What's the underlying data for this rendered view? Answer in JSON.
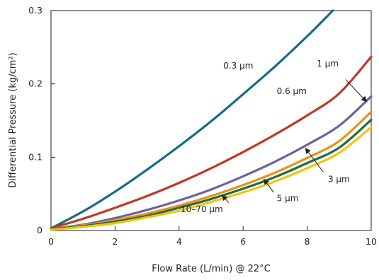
{
  "chart_data": {
    "type": "line",
    "title": "",
    "xlabel": "Flow Rate (L/min) @ 22°C",
    "ylabel": "Differential Pressure (kg/cm²)",
    "xlim": [
      0,
      10
    ],
    "ylim": [
      0,
      0.3
    ],
    "x_ticks": [
      0,
      2,
      4,
      6,
      8,
      10
    ],
    "y_ticks": [
      {
        "value": 0,
        "label": "0"
      },
      {
        "value": 0.1,
        "label": "0.1"
      },
      {
        "value": 0.2,
        "label": "0.2"
      },
      {
        "value": 0.3,
        "label": "0.3"
      }
    ],
    "grid": false,
    "x": [
      0,
      1,
      2,
      3,
      4,
      5,
      6,
      7,
      8,
      9,
      10
    ],
    "series": [
      {
        "name": "0.3 µm",
        "color": "#136d86",
        "x": [
          0,
          1,
          2,
          3,
          4,
          5,
          6,
          7,
          8,
          8.8
        ],
        "values": [
          0.003,
          0.026,
          0.053,
          0.083,
          0.115,
          0.149,
          0.186,
          0.224,
          0.265,
          0.3
        ]
      },
      {
        "name": "0.6 µm",
        "color": "#bf3a26",
        "x": [
          0,
          1,
          2,
          3,
          4,
          5,
          6,
          7,
          8,
          9,
          10
        ],
        "values": [
          0.003,
          0.016,
          0.031,
          0.047,
          0.065,
          0.085,
          0.107,
          0.131,
          0.157,
          0.187,
          0.237
        ]
      },
      {
        "name": "1 µm",
        "color": "#6b63a3",
        "x": [
          0,
          1,
          2,
          3,
          4,
          5,
          6,
          7,
          8,
          9,
          10
        ],
        "values": [
          0.002,
          0.008,
          0.017,
          0.028,
          0.041,
          0.056,
          0.074,
          0.094,
          0.117,
          0.143,
          0.183
        ]
      },
      {
        "name": "3 µm",
        "color": "#e8921b",
        "x": [
          0,
          1,
          2,
          3,
          4,
          5,
          6,
          7,
          8,
          9,
          10
        ],
        "values": [
          0.002,
          0.007,
          0.014,
          0.023,
          0.034,
          0.047,
          0.062,
          0.079,
          0.099,
          0.122,
          0.162
        ]
      },
      {
        "name": "5 µm",
        "color": "#1f6e3b",
        "x": [
          0,
          1,
          2,
          3,
          4,
          5,
          6,
          7,
          8,
          9,
          10
        ],
        "values": [
          0.002,
          0.006,
          0.012,
          0.02,
          0.031,
          0.043,
          0.057,
          0.073,
          0.092,
          0.113,
          0.151
        ]
      },
      {
        "name": "10–70 µm",
        "color": "#f2c311",
        "x": [
          0,
          1,
          2,
          3,
          4,
          5,
          6,
          7,
          8,
          9,
          10
        ],
        "values": [
          0.001,
          0.005,
          0.01,
          0.018,
          0.027,
          0.039,
          0.052,
          0.067,
          0.085,
          0.106,
          0.141
        ]
      }
    ],
    "annotations": [
      {
        "text": "0.3 µm",
        "series": "0.3 µm",
        "label_at": [
          5.38,
          0.221
        ],
        "arrow": false
      },
      {
        "text": "0.6 µm",
        "series": "0.6 µm",
        "label_at": [
          7.05,
          0.186
        ],
        "arrow": false
      },
      {
        "text": "1 µm",
        "series": "1 µm",
        "label_at": [
          8.3,
          0.224
        ],
        "arrow": true,
        "arrow_from": [
          9.2,
          0.206
        ],
        "arrow_to": [
          9.85,
          0.176
        ]
      },
      {
        "text": "3 µm",
        "series": "3 µm",
        "label_at": [
          8.65,
          0.066
        ],
        "arrow": true,
        "arrow_from": [
          8.5,
          0.08
        ],
        "arrow_to": [
          7.95,
          0.112
        ]
      },
      {
        "text": "5 µm",
        "series": "5 µm",
        "label_at": [
          7.05,
          0.04
        ],
        "arrow": true,
        "arrow_from": [
          6.95,
          0.052
        ],
        "arrow_to": [
          6.65,
          0.07
        ]
      },
      {
        "text": "10–70 µm",
        "series": "10–70 µm",
        "label_at": [
          4.05,
          0.025
        ],
        "arrow": true,
        "arrow_from": [
          5.55,
          0.038
        ],
        "arrow_to": [
          5.35,
          0.048
        ]
      }
    ]
  }
}
